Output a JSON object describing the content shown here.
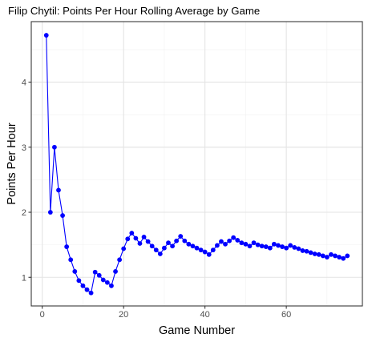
{
  "chart_data": {
    "type": "line",
    "title": "Filip Chytil: Points Per Hour Rolling Average by Game",
    "xlabel": "Game Number",
    "ylabel": "Points Per Hour",
    "xlim": [
      -2.7,
      78.7
    ],
    "ylim": [
      0.56,
      4.93
    ],
    "x_ticks": [
      0,
      20,
      40,
      60
    ],
    "y_ticks": [
      1,
      2,
      3,
      4
    ],
    "x_minor_ticks": [
      10,
      30,
      50,
      70
    ],
    "y_minor_ticks": [
      1.5,
      2.5,
      3.5,
      4.5
    ],
    "grid": true,
    "legend": "none",
    "series": [
      {
        "color": "#0000ff",
        "x": [
          1,
          2,
          3,
          4,
          5,
          6,
          7,
          8,
          9,
          10,
          11,
          12,
          13,
          14,
          15,
          16,
          17,
          18,
          19,
          20,
          21,
          22,
          23,
          24,
          25,
          26,
          27,
          28,
          29,
          30,
          31,
          32,
          33,
          34,
          35,
          36,
          37,
          38,
          39,
          40,
          41,
          42,
          43,
          44,
          45,
          46,
          47,
          48,
          49,
          50,
          51,
          52,
          53,
          54,
          55,
          56,
          57,
          58,
          59,
          60,
          61,
          62,
          63,
          64,
          65,
          66,
          67,
          68,
          69,
          70,
          71,
          72,
          73,
          74,
          75
        ],
        "y": [
          4.72,
          2.0,
          3.0,
          2.34,
          1.95,
          1.47,
          1.27,
          1.09,
          0.95,
          0.87,
          0.81,
          0.76,
          1.08,
          1.03,
          0.96,
          0.92,
          0.87,
          1.09,
          1.27,
          1.44,
          1.59,
          1.68,
          1.6,
          1.52,
          1.62,
          1.55,
          1.48,
          1.42,
          1.36,
          1.45,
          1.53,
          1.48,
          1.56,
          1.63,
          1.56,
          1.51,
          1.48,
          1.45,
          1.42,
          1.39,
          1.35,
          1.42,
          1.49,
          1.55,
          1.51,
          1.56,
          1.61,
          1.57,
          1.53,
          1.51,
          1.48,
          1.53,
          1.5,
          1.48,
          1.47,
          1.45,
          1.51,
          1.49,
          1.47,
          1.45,
          1.49,
          1.46,
          1.44,
          1.41,
          1.4,
          1.38,
          1.36,
          1.35,
          1.33,
          1.31,
          1.35,
          1.33,
          1.31,
          1.29,
          1.33
        ]
      }
    ]
  }
}
